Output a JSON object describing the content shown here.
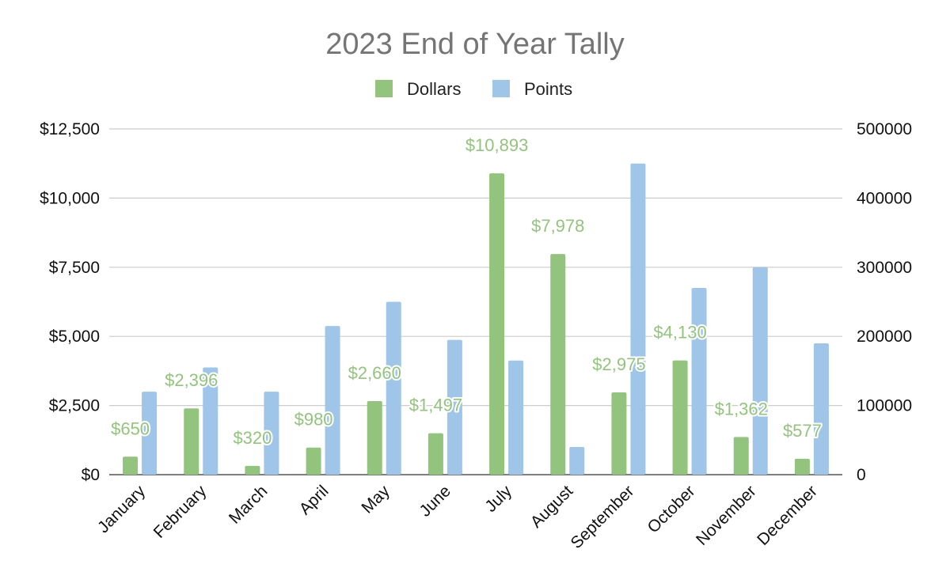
{
  "chart_data": {
    "type": "bar",
    "title": "2023 End of Year Tally",
    "categories": [
      "January",
      "February",
      "March",
      "April",
      "May",
      "June",
      "July",
      "August",
      "September",
      "October",
      "November",
      "December"
    ],
    "series": [
      {
        "name": "Dollars",
        "axis": "left",
        "color": "#93c47d",
        "values": [
          650,
          2396,
          320,
          980,
          2660,
          1497,
          10893,
          7978,
          2975,
          4130,
          1362,
          577
        ],
        "labels": [
          "$650",
          "$2,396",
          "$320",
          "$980",
          "$2,660",
          "$1,497",
          "$10,893",
          "$7,978",
          "$2,975",
          "$4,130",
          "$1,362",
          "$577"
        ]
      },
      {
        "name": "Points",
        "axis": "right",
        "color": "#9fc5e8",
        "values": [
          120000,
          155000,
          120000,
          215000,
          250000,
          195000,
          165000,
          40000,
          450000,
          270000,
          300000,
          190000
        ]
      }
    ],
    "left_axis": {
      "ylim": [
        0,
        12500
      ],
      "ticks": [
        0,
        2500,
        5000,
        7500,
        10000,
        12500
      ],
      "tick_labels": [
        "$0",
        "$2,500",
        "$5,000",
        "$7,500",
        "$10,000",
        "$12,500"
      ]
    },
    "right_axis": {
      "ylim": [
        0,
        500000
      ],
      "ticks": [
        0,
        100000,
        200000,
        300000,
        400000,
        500000
      ],
      "tick_labels": [
        "0",
        "100000",
        "200000",
        "300000",
        "400000",
        "500000"
      ]
    },
    "grid": true,
    "legend_position": "top-center"
  }
}
